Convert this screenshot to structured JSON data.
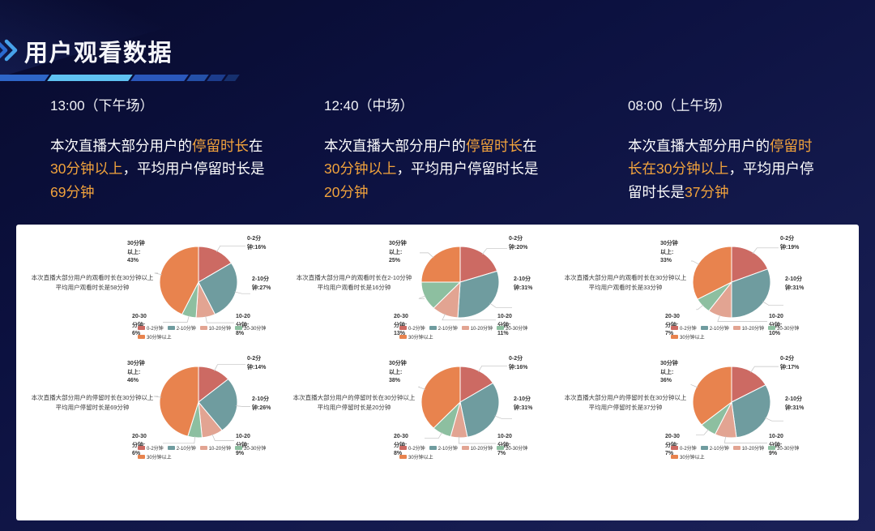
{
  "header": {
    "title": "用户观看数据",
    "chevron_icon": "double-right-chevron",
    "accent_blue": "#47a2ea"
  },
  "highlight_color": "#f2a33c",
  "sessions": [
    {
      "time": "13:00（下午场）",
      "summary_segments": [
        {
          "text": "本次直播大部分用户的",
          "highlight": false
        },
        {
          "text": "停留时长",
          "highlight": true
        },
        {
          "text": "在\n",
          "highlight": false
        },
        {
          "text": "30分钟以上",
          "highlight": true
        },
        {
          "text": "，平均用户停留时长是\n",
          "highlight": false
        },
        {
          "text": "69分钟",
          "highlight": true
        }
      ]
    },
    {
      "time": "12:40（中场）",
      "summary_segments": [
        {
          "text": "本次直播大部分用户的",
          "highlight": false
        },
        {
          "text": "停留时长",
          "highlight": true
        },
        {
          "text": "在\n",
          "highlight": false
        },
        {
          "text": "30分钟以上",
          "highlight": true
        },
        {
          "text": "，平均用户停留时长是\n",
          "highlight": false
        },
        {
          "text": "20分钟",
          "highlight": true
        }
      ]
    },
    {
      "time": "08:00（上午场）",
      "summary_segments": [
        {
          "text": "本次直播大部分用户的",
          "highlight": false
        },
        {
          "text": "停留时\n长在30分钟以上",
          "highlight": true
        },
        {
          "text": "，平均用户停\n留时长是",
          "highlight": false
        },
        {
          "text": "37分钟",
          "highlight": true
        }
      ]
    }
  ],
  "chart_panel": {
    "palette": [
      "#cc6a63",
      "#6f9c9f",
      "#e2a492",
      "#8dbfa0",
      "#e8834e"
    ],
    "leader_line_color": "#c0c0c0"
  },
  "chart_data": [
    {
      "type": "pie",
      "caption_lines": [
        "本次直播大部分用户的观看时长在30分钟以上",
        "平均用户观看时长是58分钟"
      ],
      "categories": [
        "0-2分钟",
        "2-10分钟",
        "10-20分钟",
        "20-30分钟",
        "30分钟以上"
      ],
      "values": [
        16,
        27,
        8,
        6,
        43
      ],
      "unit": "%",
      "callout_labels": [
        "0-2分\n钟:16%",
        "2-10分\n钟:27%",
        "10-20\n分钟:\n8%",
        "20-30\n分钟:\n6%",
        "30分钟\n以上:\n43%"
      ]
    },
    {
      "type": "pie",
      "caption_lines": [
        "本次直播大部分用户的观看时长在2-10分钟",
        "平均用户观看时长是16分钟"
      ],
      "categories": [
        "0-2分钟",
        "2-10分钟",
        "10-20分钟",
        "20-30分钟",
        "30分钟以上"
      ],
      "values": [
        20,
        31,
        11,
        13,
        25
      ],
      "unit": "%",
      "callout_labels": [
        "0-2分\n钟:20%",
        "2-10分\n钟:31%",
        "10-20\n分钟:\n11%",
        "20-30\n分钟:\n13%",
        "30分钟\n以上:\n25%"
      ]
    },
    {
      "type": "pie",
      "caption_lines": [
        "本次直播大部分用户的观看时长在30分钟以上",
        "平均用户观看时长是33分钟"
      ],
      "categories": [
        "0-2分钟",
        "2-10分钟",
        "10-20分钟",
        "20-30分钟",
        "30分钟以上"
      ],
      "values": [
        19,
        31,
        10,
        7,
        33
      ],
      "unit": "%",
      "callout_labels": [
        "0-2分\n钟:19%",
        "2-10分\n钟:31%",
        "10-20\n分钟:\n10%",
        "20-30\n分钟:\n7%",
        "30分钟\n以上:\n33%"
      ]
    },
    {
      "type": "pie",
      "caption_lines": [
        "本次直播大部分用户的停留时长在30分钟以上",
        "平均用户停留时长是69分钟"
      ],
      "categories": [
        "0-2分钟",
        "2-10分钟",
        "10-20分钟",
        "20-30分钟",
        "30分钟以上"
      ],
      "values": [
        14,
        26,
        9,
        6,
        46
      ],
      "unit": "%",
      "callout_labels": [
        "0-2分\n钟:14%",
        "2-10分\n钟:26%",
        "10-20\n分钟:\n9%",
        "20-30\n分钟:\n6%",
        "30分钟\n以上:\n46%"
      ]
    },
    {
      "type": "pie",
      "caption_lines": [
        "本次直播大部分用户的停留时长在30分钟以上",
        "平均用户停留时长是20分钟"
      ],
      "categories": [
        "0-2分钟",
        "2-10分钟",
        "10-20分钟",
        "20-30分钟",
        "30分钟以上"
      ],
      "values": [
        16,
        31,
        7,
        8,
        38
      ],
      "unit": "%",
      "callout_labels": [
        "0-2分\n钟:16%",
        "2-10分\n钟:31%",
        "10-20\n分钟:\n7%",
        "20-30\n分钟:\n8%",
        "30分钟\n以上:\n38%"
      ]
    },
    {
      "type": "pie",
      "caption_lines": [
        "本次直播大部分用户的停留时长在30分钟以上",
        "平均用户停留时长是37分钟"
      ],
      "categories": [
        "0-2分钟",
        "2-10分钟",
        "10-20分钟",
        "20-30分钟",
        "30分钟以上"
      ],
      "values": [
        17,
        31,
        9,
        7,
        36
      ],
      "unit": "%",
      "callout_labels": [
        "0-2分\n钟:17%",
        "2-10分\n钟:31%",
        "10-20\n分钟:\n9%",
        "20-30\n分钟:\n7%",
        "30分钟\n以上:\n36%"
      ]
    }
  ]
}
